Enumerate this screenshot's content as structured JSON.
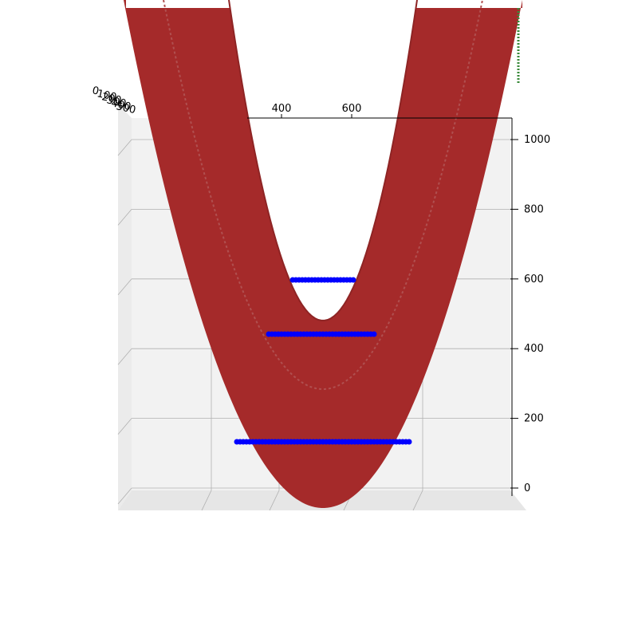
{
  "chart_data": {
    "type": "surface3d",
    "title": "",
    "xlabel": "",
    "ylabel": "",
    "zlabel": "",
    "x_ticks": [
      "400",
      "600"
    ],
    "z_ticks": [
      "0",
      "200",
      "400",
      "600",
      "800",
      "1000"
    ],
    "y_ticks": [
      "0",
      "100",
      "200",
      "300",
      "400",
      "500"
    ],
    "grid": true,
    "colors": {
      "surface": "#a52a2a",
      "surface_edge": "#8e2424",
      "scatter_ring": "#0000ff",
      "scatter_fill_a": "#d94a4a",
      "scatter_fill_b": "#8a8a3a",
      "pane_back": "#f2f2f2",
      "grid": "#b0b0b0",
      "scatter_edge_green": "#3a8a3a"
    },
    "surfaces": [
      {
        "name": "",
        "vertex_z": 0,
        "curvature": "parabolic"
      },
      {
        "name": "",
        "vertex_z": 290,
        "curvature": "parabolic"
      },
      {
        "name": "",
        "vertex_z": 490,
        "curvature": "parabolic"
      }
    ],
    "scatter_levels": [
      {
        "z": 140,
        "x_range": [
          300,
          760
        ]
      },
      {
        "z": 450,
        "x_range": [
          330,
          620
        ]
      },
      {
        "z": 600,
        "x_range": [
          370,
          560
        ]
      }
    ]
  }
}
